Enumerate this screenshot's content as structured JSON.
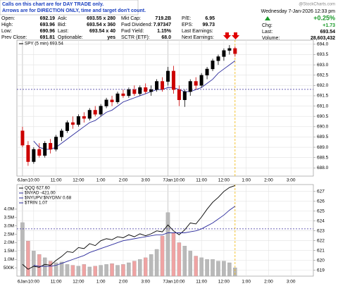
{
  "note": [
    "Calls on this chart are for DAY TRADE only.",
    "Arrows are for DIRECTION ONLY, time and target don't count."
  ],
  "watermark": "@StockCharts.com",
  "header": {
    "columns": [
      [
        {
          "label": "Open:",
          "value": "692.19"
        },
        {
          "label": "High:",
          "value": "693.96"
        },
        {
          "label": "Low:",
          "value": "690.96"
        },
        {
          "label": "Prev Close:",
          "value": "691.81"
        }
      ],
      [
        {
          "label": "Ask:",
          "value": "693.55 x 280"
        },
        {
          "label": "Bid:",
          "value": "693.54 x 360"
        },
        {
          "label": "Last:",
          "value": "693.54 x 40"
        },
        {
          "label": "Optionable:",
          "value": "yes"
        }
      ],
      [
        {
          "label": "Mkt Cap:",
          "value": "719.2B"
        },
        {
          "label": "Fwd Dividend:",
          "value": "7.97347"
        },
        {
          "label": "Fwd Yield:",
          "value": "1.15%"
        },
        {
          "label": "SCTR (ETF):",
          "value": "68.0"
        }
      ],
      [
        {
          "label": "P/E:",
          "value": "6.95"
        },
        {
          "label": "EPS:",
          "value": "99.73"
        },
        {
          "label": "Last Earnings:"
        },
        {
          "label": "Next Earnings:"
        }
      ]
    ],
    "date": "Wednesday  7-Jan-2026  12:33 pm",
    "change_pct": "+0.25%",
    "quote": [
      {
        "label": "Chg:",
        "value": "+1.73"
      },
      {
        "label": "Last:",
        "value": "693.54"
      },
      {
        "label": "Volume:",
        "value": "28,603,432"
      }
    ]
  },
  "chart_data": [
    {
      "type": "candlestick",
      "legend": [
        "SPY (5 min) 693.54"
      ],
      "xlim": [
        -1,
        52
      ],
      "xticks": [
        {
          "value": 0,
          "label": "6Jan"
        },
        {
          "value": 2,
          "label": "10:00"
        },
        {
          "value": 6,
          "label": "11:00"
        },
        {
          "value": 10,
          "label": "12:00"
        },
        {
          "value": 14,
          "label": "1:00"
        },
        {
          "value": 18,
          "label": "2:00"
        },
        {
          "value": 22,
          "label": "3:00"
        },
        {
          "value": 26,
          "label": "7Jan"
        },
        {
          "value": 28,
          "label": "10:00"
        },
        {
          "value": 32,
          "label": "11:00"
        },
        {
          "value": 36,
          "label": "12:00"
        },
        {
          "value": 40,
          "label": "1:00"
        },
        {
          "value": 44,
          "label": "2:00"
        },
        {
          "value": 48,
          "label": "3:00"
        }
      ],
      "ylim": [
        687.6,
        694.2
      ],
      "yticks": [
        {
          "value": 688,
          "label": "688.0"
        },
        {
          "value": 688.5,
          "label": "688.5"
        },
        {
          "value": 689,
          "label": "689.0"
        },
        {
          "value": 689.5,
          "label": "689.5"
        },
        {
          "value": 690,
          "label": "690.0"
        },
        {
          "value": 690.5,
          "label": "690.5"
        },
        {
          "value": 691,
          "label": "691.0"
        },
        {
          "value": 691.5,
          "label": "691.5"
        },
        {
          "value": 692,
          "label": "692.0"
        },
        {
          "value": 692.5,
          "label": "692.5"
        },
        {
          "value": 693,
          "label": "693.0"
        },
        {
          "value": 693.5,
          "label": "693.5"
        },
        {
          "value": 694,
          "label": "694.0"
        }
      ],
      "grid": true,
      "up_color": "#000000",
      "down_color": "#cc0000",
      "open": [
        689.8,
        689.1,
        688.3,
        688.9,
        688.6,
        689.2,
        688.9,
        689.5,
        689.8,
        690.2,
        690.1,
        690.5,
        690.4,
        690.8,
        690.6,
        691.0,
        691.3,
        691.2,
        691.6,
        691.5,
        691.8,
        691.6,
        691.9,
        691.7,
        691.8,
        692.2,
        692.19,
        692.7,
        691.8,
        691.3,
        691.7,
        692.2,
        692.0,
        692.5,
        692.8,
        693.2,
        693.4,
        693.7,
        693.8
      ],
      "high": [
        690.0,
        689.3,
        689.0,
        689.2,
        689.3,
        689.4,
        689.6,
        689.9,
        690.3,
        690.5,
        690.6,
        690.7,
        690.9,
        691.0,
        691.1,
        691.4,
        691.5,
        691.7,
        691.8,
        691.9,
        692.0,
        692.0,
        692.1,
        692.0,
        692.3,
        692.4,
        692.9,
        692.95,
        692.0,
        691.8,
        692.3,
        692.4,
        692.6,
        692.9,
        693.3,
        693.5,
        693.8,
        693.96,
        693.9
      ],
      "low": [
        689.0,
        688.1,
        688.2,
        688.5,
        688.5,
        688.7,
        688.8,
        689.3,
        689.7,
        689.9,
        690.0,
        690.2,
        690.3,
        690.5,
        690.5,
        690.9,
        691.0,
        691.1,
        691.4,
        691.4,
        691.5,
        691.5,
        691.6,
        691.5,
        691.7,
        691.7,
        692.0,
        691.6,
        691.0,
        690.96,
        691.5,
        691.8,
        691.9,
        692.3,
        692.7,
        693.0,
        693.2,
        693.5,
        693.4
      ],
      "close": [
        689.1,
        688.3,
        688.9,
        688.6,
        689.2,
        688.9,
        689.5,
        689.8,
        690.2,
        690.1,
        690.5,
        690.4,
        690.8,
        690.6,
        691.0,
        691.3,
        691.2,
        691.6,
        691.5,
        691.8,
        691.6,
        691.9,
        691.7,
        691.8,
        692.2,
        691.81,
        692.7,
        691.8,
        691.3,
        691.7,
        692.2,
        692.0,
        692.5,
        692.8,
        693.2,
        693.4,
        693.7,
        693.8,
        693.54
      ],
      "series": [
        {
          "color": "#2a2a9c",
          "values": [
            null,
            null,
            689.3,
            689.0,
            688.9,
            688.9,
            689.0,
            689.2,
            689.4,
            689.6,
            689.8,
            690.0,
            690.2,
            690.3,
            690.5,
            690.7,
            690.8,
            691.0,
            691.2,
            691.3,
            691.4,
            691.5,
            691.6,
            691.7,
            691.8,
            691.8,
            691.9,
            691.9,
            691.8,
            691.7,
            691.7,
            691.8,
            691.9,
            692.1,
            692.3,
            692.6,
            692.8,
            693.0,
            693.2
          ]
        }
      ],
      "hline": 691.81,
      "hline_color": "#3b2d9e",
      "vline": 38,
      "vline_color": "#f0b400"
    },
    {
      "type": "line",
      "legend": [
        "QQQ 627.60",
        "$NYAD -421.00",
        "$NYUPV:$NYDNV 0.68",
        "$TRIN 1.07"
      ],
      "xlim": [
        -1,
        52
      ],
      "xticks": [
        {
          "value": 0,
          "label": "6Jan"
        },
        {
          "value": 2,
          "label": "10:00"
        },
        {
          "value": 6,
          "label": "11:00"
        },
        {
          "value": 10,
          "label": "12:00"
        },
        {
          "value": 14,
          "label": "1:00"
        },
        {
          "value": 18,
          "label": "2:00"
        },
        {
          "value": 22,
          "label": "3:00"
        },
        {
          "value": 26,
          "label": "7Jan"
        },
        {
          "value": 28,
          "label": "10:00"
        },
        {
          "value": 32,
          "label": "11:00"
        },
        {
          "value": 36,
          "label": "12:00"
        },
        {
          "value": 40,
          "label": "1:00"
        },
        {
          "value": 44,
          "label": "2:00"
        },
        {
          "value": 48,
          "label": "3:00"
        }
      ],
      "ylim": [
        618.4,
        627.7
      ],
      "yticks": [
        619,
        620,
        621,
        622,
        623,
        624,
        625,
        626,
        627
      ],
      "y2lim": [
        0,
        5470000
      ],
      "y2ticks": [
        {
          "value": 500000,
          "label": "500K"
        },
        {
          "value": 1000000,
          "label": "1.0M"
        },
        {
          "value": 1500000,
          "label": "1.5M"
        },
        {
          "value": 2000000,
          "label": "2.0M"
        },
        {
          "value": 2500000,
          "label": "2.5M"
        },
        {
          "value": 3000000,
          "label": "3.0M"
        },
        {
          "value": 3500000,
          "label": "3.5M"
        },
        {
          "value": 4000000,
          "label": "4.0M"
        }
      ],
      "grid": true,
      "series": [
        {
          "axis": "y2",
          "up_color": "#b9b9b9",
          "down_color": "#efa3a3",
          "values": [
            3200000,
            2100000,
            1500000,
            1300000,
            1100000,
            900000,
            800000,
            850000,
            700000,
            650000,
            600000,
            700000,
            550000,
            600000,
            650000,
            700000,
            750000,
            650000,
            700000,
            800000,
            900000,
            1000000,
            1100000,
            1300000,
            1600000,
            2400000,
            3800000,
            2600000,
            2000000,
            1800000,
            1500000,
            1200000,
            1100000,
            1000000,
            1000000,
            900000,
            900000,
            800000,
            500000
          ]
        },
        {
          "color": "#000000",
          "values": [
            619.6,
            619.1,
            619.4,
            619.3,
            619.6,
            619.5,
            620.0,
            620.4,
            620.9,
            620.8,
            621.3,
            621.2,
            621.7,
            621.5,
            622.0,
            622.2,
            622.1,
            622.4,
            622.3,
            622.6,
            622.4,
            622.7,
            622.5,
            622.7,
            623.0,
            622.9,
            623.6,
            623.0,
            622.6,
            623.1,
            623.8,
            623.7,
            624.4,
            625.2,
            625.9,
            626.4,
            627.0,
            627.4,
            627.6
          ]
        },
        {
          "color": "#2a2a9c",
          "values": [
            null,
            null,
            619.5,
            619.4,
            619.4,
            619.4,
            619.5,
            619.7,
            619.9,
            620.1,
            620.3,
            620.5,
            620.8,
            621.0,
            621.2,
            621.4,
            621.6,
            621.8,
            622.0,
            622.1,
            622.2,
            622.3,
            622.4,
            622.5,
            622.6,
            622.6,
            622.8,
            622.8,
            622.8,
            622.8,
            622.9,
            623.0,
            623.2,
            623.5,
            623.8,
            624.2,
            624.6,
            625.1,
            625.5
          ]
        }
      ],
      "hline": 623.2,
      "hline_color": "#3b2d9e",
      "vline": 38,
      "vline_color": "#f0b400"
    }
  ]
}
